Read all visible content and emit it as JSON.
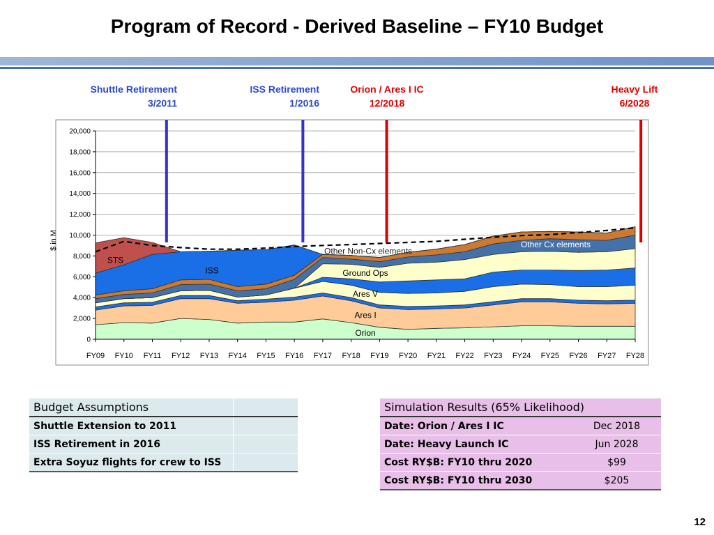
{
  "slide": {
    "title": "Program of Record - Derived Baseline – FY10 Budget",
    "page_number": "12"
  },
  "markers": [
    {
      "line1": "Shuttle Retirement",
      "line2": "3/2011",
      "color": "#3333cc",
      "x_index": 2.5
    },
    {
      "line1": "ISS Retirement",
      "line2": "1/2016",
      "color": "#3333cc",
      "x_index": 7.3
    },
    {
      "line1": "Orion / Ares I IC",
      "line2": "12/2018",
      "color": "#dd0000",
      "x_index": 10.25
    },
    {
      "line1": "Heavy Lift",
      "line2": "6/2028",
      "color": "#dd0000",
      "x_index": 19.2
    }
  ],
  "chart_data": {
    "type": "area",
    "stacked": true,
    "ylabel": "$ in M",
    "ylim": [
      0,
      20000
    ],
    "yticks": [
      0,
      2000,
      4000,
      6000,
      8000,
      10000,
      12000,
      14000,
      16000,
      18000,
      20000
    ],
    "ytick_labels": [
      "0",
      "2,000",
      "4,000",
      "6,000",
      "8,000",
      "10,000",
      "12,000",
      "14,000",
      "16,000",
      "18,000",
      "20,000"
    ],
    "grid": true,
    "categories": [
      "FY09",
      "FY10",
      "FY11",
      "FY12",
      "FY13",
      "FY14",
      "FY15",
      "FY16",
      "FY17",
      "FY18",
      "FY19",
      "FY20",
      "FY21",
      "FY22",
      "FY23",
      "FY24",
      "FY25",
      "FY26",
      "FY27",
      "FY28"
    ],
    "series": [
      {
        "name": "Orion",
        "color": "#ccffcc",
        "label_pos": [
          9.5,
          600
        ],
        "values": [
          1400,
          1600,
          1550,
          2000,
          1900,
          1550,
          1650,
          1650,
          1950,
          1600,
          1150,
          950,
          1050,
          1100,
          1200,
          1300,
          1300,
          1250,
          1250,
          1250
        ]
      },
      {
        "name": "Ares I",
        "color": "#ffcc99",
        "label_pos": [
          9.5,
          2300
        ],
        "values": [
          1400,
          1600,
          1700,
          1900,
          2000,
          1900,
          1900,
          2100,
          2200,
          2100,
          1850,
          1900,
          1850,
          1900,
          2100,
          2300,
          2300,
          2200,
          2150,
          2200
        ]
      },
      {
        "name": "",
        "color": "#1a6fe6",
        "values": [
          300,
          300,
          300,
          300,
          300,
          250,
          300,
          300,
          300,
          300,
          300,
          300,
          300,
          300,
          300,
          300,
          300,
          300,
          300,
          300
        ]
      },
      {
        "name": "",
        "color": "#ffffcc",
        "values": [
          400,
          400,
          450,
          450,
          500,
          350,
          400,
          850,
          1100,
          1200,
          1200,
          1250,
          1250,
          1300,
          1450,
          1400,
          1350,
          1300,
          1350,
          1450
        ]
      },
      {
        "name": "Ares V",
        "color": "#1a6fe6",
        "label_pos": [
          9.5,
          4350
        ],
        "values": [
          0,
          0,
          0,
          0,
          0,
          0,
          0,
          0,
          400,
          600,
          1000,
          1200,
          1250,
          1200,
          1400,
          1350,
          1400,
          1550,
          1600,
          1650
        ]
      },
      {
        "name": "Ground Ops",
        "color": "#ffffcc",
        "label_pos": [
          9.5,
          6350
        ],
        "values": [
          0,
          0,
          0,
          0,
          0,
          0,
          0,
          0,
          1300,
          1400,
          1400,
          1700,
          1700,
          1850,
          1700,
          1750,
          1800,
          1750,
          1750,
          1850
        ]
      },
      {
        "name": "",
        "color": "#4472a8",
        "values": [
          400,
          400,
          450,
          600,
          600,
          600,
          600,
          850,
          600,
          500,
          550,
          600,
          700,
          750,
          1000,
          1100,
          1200,
          1200,
          1100,
          1300
        ]
      },
      {
        "name": "",
        "color": "#cc7a33",
        "values": [
          350,
          350,
          400,
          450,
          450,
          400,
          450,
          400,
          300,
          350,
          400,
          450,
          550,
          700,
          750,
          800,
          700,
          750,
          700,
          800
        ]
      },
      {
        "name": "ISS",
        "color": "#1a6fe6",
        "label_pos": [
          4.1,
          6600
        ],
        "values": [
          2100,
          2500,
          3300,
          2700,
          2700,
          3500,
          3300,
          2900,
          0,
          0,
          0,
          0,
          0,
          0,
          0,
          0,
          0,
          0,
          0,
          0
        ]
      },
      {
        "name": "STS",
        "color": "#c0504d",
        "label_pos": [
          0.7,
          7600
        ],
        "values": [
          2900,
          2600,
          1150,
          0,
          0,
          0,
          0,
          0,
          0,
          0,
          0,
          0,
          0,
          0,
          0,
          0,
          0,
          0,
          0,
          0
        ]
      }
    ],
    "area_labels": [
      {
        "text": "Other Non-Cx  elements",
        "x_index": 9.6,
        "y": 8450,
        "color": "#222222"
      },
      {
        "text": "Other Cx elements",
        "x_index": 16.2,
        "y": 9100,
        "color": "#ffffff"
      }
    ],
    "dashed_line": {
      "name": "",
      "color": "#000000",
      "values": [
        8400,
        9400,
        9000,
        8800,
        8650,
        8650,
        8750,
        8900,
        9000,
        9100,
        9200,
        9300,
        9400,
        9600,
        9800,
        9950,
        10050,
        10250,
        10450,
        10700
      ]
    }
  },
  "budget_table": {
    "header": "Budget Assumptions",
    "rows": [
      "Shuttle Extension to 2011",
      "ISS Retirement in 2016",
      "Extra Soyuz flights for crew to ISS"
    ]
  },
  "results_table": {
    "header": "Simulation Results (65% Likelihood)",
    "rows": [
      {
        "label": "Date: Orion / Ares I IC",
        "value": "Dec 2018"
      },
      {
        "label": "Date: Heavy Launch IC",
        "value": "Jun 2028"
      },
      {
        "label": "Cost RY$B: FY10 thru 2020",
        "value": "$99"
      },
      {
        "label": "Cost RY$B: FY10 thru 2030",
        "value": "$205"
      }
    ]
  }
}
